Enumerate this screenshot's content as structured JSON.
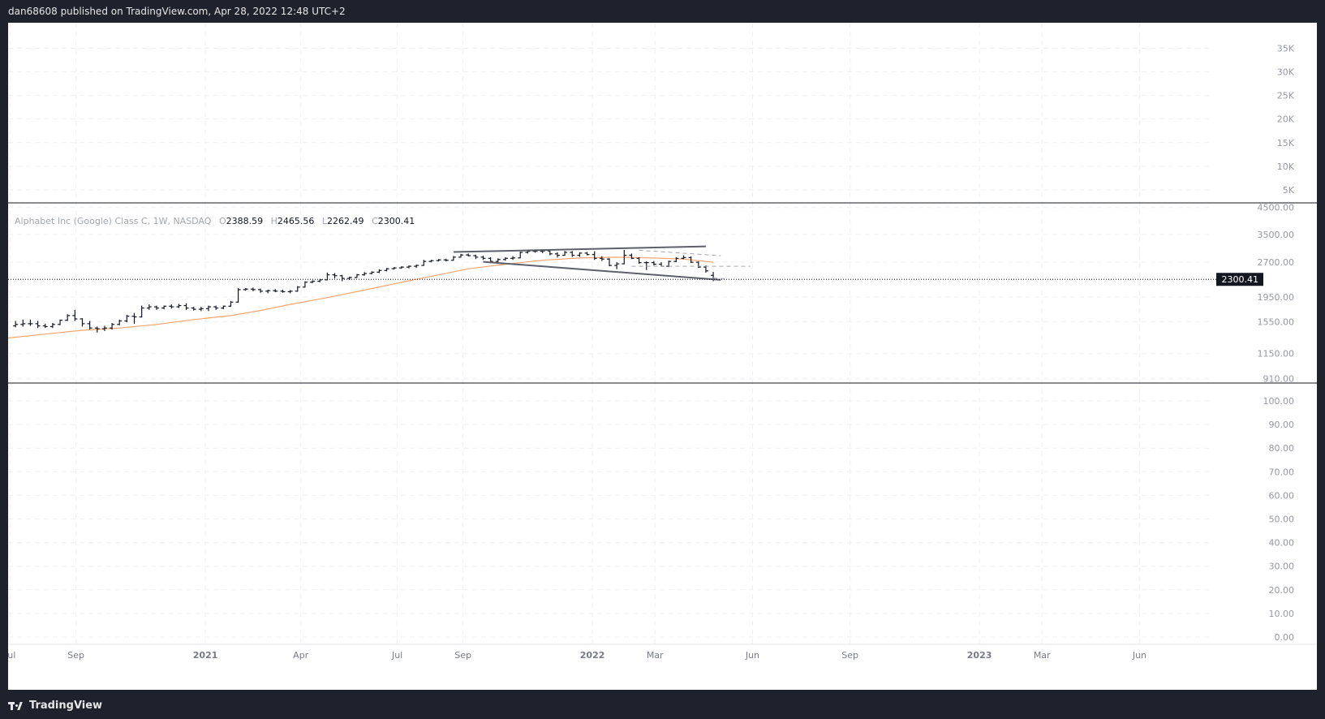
{
  "header": {
    "published": "dan68608 published on TradingView.com, Apr 28, 2022 12:48 UTC+2"
  },
  "footer": {
    "brand": "TradingView"
  },
  "legend": {
    "symbol": "Alphabet Inc (Google) Class C, 1W, NASDAQ",
    "o_label": "O",
    "o": "2388.59",
    "h_label": "H",
    "h": "2465.56",
    "l_label": "L",
    "l": "2262.49",
    "c_label": "C",
    "c": "2300.41"
  },
  "colors": {
    "background": "#ffffff",
    "bar": "#131722",
    "ma": "#f7a46f",
    "trendline": "#5d606b",
    "frame": "#1e222d",
    "price_label_bg": "#131722",
    "price_label_text": "#ffffff"
  },
  "chart_data": [
    {
      "type": "line",
      "pane": "top",
      "y_ticks": [
        "35K",
        "30K",
        "25K",
        "20K",
        "15K",
        "10K",
        "5K"
      ],
      "y_values": [
        35000,
        30000,
        25000,
        20000,
        15000,
        10000,
        5000
      ],
      "series": []
    },
    {
      "type": "ohlc",
      "pane": "main",
      "y_scale": "log",
      "ylim": [
        880,
        4700
      ],
      "y_ticks": [
        "4500.00",
        "3500.00",
        "2700.00",
        "1950.00",
        "1550.00",
        "1150.00",
        "910.00"
      ],
      "y_values": [
        4500,
        3500,
        2700,
        1950,
        1550,
        1150,
        910
      ],
      "last_price": 2300.41,
      "last_price_label": "2300.41",
      "x_ticks": [
        {
          "label": "Jul",
          "date": "2020-07-01",
          "bold": false
        },
        {
          "label": "Sep",
          "date": "2020-09-01",
          "bold": false
        },
        {
          "label": "2021",
          "date": "2021-01-01",
          "bold": true
        },
        {
          "label": "Apr",
          "date": "2021-04-01",
          "bold": false
        },
        {
          "label": "Jul",
          "date": "2021-07-01",
          "bold": false
        },
        {
          "label": "Sep",
          "date": "2021-09-01",
          "bold": false
        },
        {
          "label": "2022",
          "date": "2022-01-01",
          "bold": true
        },
        {
          "label": "Mar",
          "date": "2022-03-01",
          "bold": false
        },
        {
          "label": "Jun",
          "date": "2022-06-01",
          "bold": false
        },
        {
          "label": "Sep",
          "date": "2022-09-01",
          "bold": false
        },
        {
          "label": "2023",
          "date": "2023-01-01",
          "bold": true
        },
        {
          "label": "Mar",
          "date": "2023-03-01",
          "bold": false
        },
        {
          "label": "Jun",
          "date": "2023-06-01",
          "bold": false
        }
      ],
      "x_start": "2020-06-29",
      "x_end": "2023-08-07",
      "bars": [
        {
          "d": "2020-07-06",
          "o": 1490,
          "h": 1560,
          "l": 1470,
          "c": 1510
        },
        {
          "d": "2020-07-13",
          "o": 1510,
          "h": 1580,
          "l": 1480,
          "c": 1520
        },
        {
          "d": "2020-07-20",
          "o": 1520,
          "h": 1580,
          "l": 1490,
          "c": 1520
        },
        {
          "d": "2020-07-27",
          "o": 1520,
          "h": 1560,
          "l": 1460,
          "c": 1490
        },
        {
          "d": "2020-08-03",
          "o": 1490,
          "h": 1520,
          "l": 1460,
          "c": 1480
        },
        {
          "d": "2020-08-10",
          "o": 1480,
          "h": 1530,
          "l": 1460,
          "c": 1510
        },
        {
          "d": "2020-08-17",
          "o": 1510,
          "h": 1580,
          "l": 1500,
          "c": 1570
        },
        {
          "d": "2020-08-24",
          "o": 1570,
          "h": 1660,
          "l": 1560,
          "c": 1640
        },
        {
          "d": "2020-08-31",
          "o": 1640,
          "h": 1730,
          "l": 1560,
          "c": 1590
        },
        {
          "d": "2020-09-07",
          "o": 1590,
          "h": 1600,
          "l": 1480,
          "c": 1520
        },
        {
          "d": "2020-09-14",
          "o": 1520,
          "h": 1560,
          "l": 1440,
          "c": 1460
        },
        {
          "d": "2020-09-21",
          "o": 1460,
          "h": 1480,
          "l": 1400,
          "c": 1450
        },
        {
          "d": "2020-09-28",
          "o": 1450,
          "h": 1490,
          "l": 1420,
          "c": 1460
        },
        {
          "d": "2020-10-05",
          "o": 1460,
          "h": 1530,
          "l": 1440,
          "c": 1510
        },
        {
          "d": "2020-10-12",
          "o": 1510,
          "h": 1580,
          "l": 1500,
          "c": 1560
        },
        {
          "d": "2020-10-19",
          "o": 1560,
          "h": 1650,
          "l": 1540,
          "c": 1630
        },
        {
          "d": "2020-10-26",
          "o": 1630,
          "h": 1680,
          "l": 1520,
          "c": 1620
        },
        {
          "d": "2020-11-02",
          "o": 1620,
          "h": 1800,
          "l": 1610,
          "c": 1760
        },
        {
          "d": "2020-11-09",
          "o": 1760,
          "h": 1820,
          "l": 1730,
          "c": 1780
        },
        {
          "d": "2020-11-16",
          "o": 1780,
          "h": 1800,
          "l": 1730,
          "c": 1760
        },
        {
          "d": "2020-11-23",
          "o": 1760,
          "h": 1800,
          "l": 1740,
          "c": 1790
        },
        {
          "d": "2020-11-30",
          "o": 1790,
          "h": 1820,
          "l": 1750,
          "c": 1780
        },
        {
          "d": "2020-12-07",
          "o": 1780,
          "h": 1830,
          "l": 1760,
          "c": 1800
        },
        {
          "d": "2020-12-14",
          "o": 1800,
          "h": 1840,
          "l": 1730,
          "c": 1760
        },
        {
          "d": "2020-12-21",
          "o": 1760,
          "h": 1780,
          "l": 1720,
          "c": 1740
        },
        {
          "d": "2020-12-28",
          "o": 1740,
          "h": 1780,
          "l": 1710,
          "c": 1750
        },
        {
          "d": "2021-01-04",
          "o": 1750,
          "h": 1800,
          "l": 1710,
          "c": 1780
        },
        {
          "d": "2021-01-11",
          "o": 1780,
          "h": 1800,
          "l": 1730,
          "c": 1760
        },
        {
          "d": "2021-01-18",
          "o": 1760,
          "h": 1800,
          "l": 1740,
          "c": 1790
        },
        {
          "d": "2021-01-25",
          "o": 1790,
          "h": 1880,
          "l": 1780,
          "c": 1860
        },
        {
          "d": "2021-02-01",
          "o": 1860,
          "h": 2120,
          "l": 1850,
          "c": 2090
        },
        {
          "d": "2021-02-08",
          "o": 2090,
          "h": 2120,
          "l": 2070,
          "c": 2100
        },
        {
          "d": "2021-02-15",
          "o": 2100,
          "h": 2130,
          "l": 2060,
          "c": 2090
        },
        {
          "d": "2021-02-22",
          "o": 2090,
          "h": 2110,
          "l": 2030,
          "c": 2060
        },
        {
          "d": "2021-03-01",
          "o": 2060,
          "h": 2090,
          "l": 2020,
          "c": 2070
        },
        {
          "d": "2021-03-08",
          "o": 2070,
          "h": 2100,
          "l": 2040,
          "c": 2060
        },
        {
          "d": "2021-03-15",
          "o": 2060,
          "h": 2090,
          "l": 2030,
          "c": 2050
        },
        {
          "d": "2021-03-22",
          "o": 2050,
          "h": 2080,
          "l": 2020,
          "c": 2060
        },
        {
          "d": "2021-03-29",
          "o": 2060,
          "h": 2160,
          "l": 2050,
          "c": 2140
        },
        {
          "d": "2021-04-05",
          "o": 2140,
          "h": 2260,
          "l": 2130,
          "c": 2240
        },
        {
          "d": "2021-04-12",
          "o": 2240,
          "h": 2280,
          "l": 2220,
          "c": 2260
        },
        {
          "d": "2021-04-19",
          "o": 2260,
          "h": 2310,
          "l": 2240,
          "c": 2290
        },
        {
          "d": "2021-04-26",
          "o": 2290,
          "h": 2450,
          "l": 2280,
          "c": 2400
        },
        {
          "d": "2021-05-03",
          "o": 2400,
          "h": 2440,
          "l": 2320,
          "c": 2380
        },
        {
          "d": "2021-05-10",
          "o": 2380,
          "h": 2400,
          "l": 2260,
          "c": 2320
        },
        {
          "d": "2021-05-17",
          "o": 2320,
          "h": 2360,
          "l": 2290,
          "c": 2340
        },
        {
          "d": "2021-05-24",
          "o": 2340,
          "h": 2420,
          "l": 2330,
          "c": 2400
        },
        {
          "d": "2021-05-31",
          "o": 2400,
          "h": 2460,
          "l": 2380,
          "c": 2430
        },
        {
          "d": "2021-06-07",
          "o": 2430,
          "h": 2480,
          "l": 2410,
          "c": 2460
        },
        {
          "d": "2021-06-14",
          "o": 2460,
          "h": 2530,
          "l": 2440,
          "c": 2500
        },
        {
          "d": "2021-06-21",
          "o": 2500,
          "h": 2560,
          "l": 2480,
          "c": 2540
        },
        {
          "d": "2021-06-28",
          "o": 2540,
          "h": 2580,
          "l": 2520,
          "c": 2560
        },
        {
          "d": "2021-07-05",
          "o": 2560,
          "h": 2600,
          "l": 2540,
          "c": 2580
        },
        {
          "d": "2021-07-12",
          "o": 2580,
          "h": 2620,
          "l": 2550,
          "c": 2600
        },
        {
          "d": "2021-07-19",
          "o": 2600,
          "h": 2640,
          "l": 2560,
          "c": 2620
        },
        {
          "d": "2021-07-26",
          "o": 2620,
          "h": 2760,
          "l": 2610,
          "c": 2720
        },
        {
          "d": "2021-08-02",
          "o": 2720,
          "h": 2760,
          "l": 2700,
          "c": 2740
        },
        {
          "d": "2021-08-09",
          "o": 2740,
          "h": 2780,
          "l": 2720,
          "c": 2760
        },
        {
          "d": "2021-08-16",
          "o": 2760,
          "h": 2790,
          "l": 2720,
          "c": 2750
        },
        {
          "d": "2021-08-23",
          "o": 2750,
          "h": 2860,
          "l": 2740,
          "c": 2830
        },
        {
          "d": "2021-08-30",
          "o": 2830,
          "h": 2920,
          "l": 2820,
          "c": 2890
        },
        {
          "d": "2021-09-06",
          "o": 2890,
          "h": 2930,
          "l": 2850,
          "c": 2870
        },
        {
          "d": "2021-09-13",
          "o": 2870,
          "h": 2900,
          "l": 2780,
          "c": 2830
        },
        {
          "d": "2021-09-20",
          "o": 2830,
          "h": 2870,
          "l": 2760,
          "c": 2800
        },
        {
          "d": "2021-09-27",
          "o": 2800,
          "h": 2830,
          "l": 2680,
          "c": 2720
        },
        {
          "d": "2021-10-04",
          "o": 2720,
          "h": 2800,
          "l": 2700,
          "c": 2770
        },
        {
          "d": "2021-10-11",
          "o": 2770,
          "h": 2830,
          "l": 2740,
          "c": 2800
        },
        {
          "d": "2021-10-18",
          "o": 2800,
          "h": 2860,
          "l": 2760,
          "c": 2810
        },
        {
          "d": "2021-10-25",
          "o": 2810,
          "h": 2980,
          "l": 2800,
          "c": 2960
        },
        {
          "d": "2021-11-01",
          "o": 2960,
          "h": 3030,
          "l": 2930,
          "c": 2990
        },
        {
          "d": "2021-11-08",
          "o": 2990,
          "h": 3040,
          "l": 2950,
          "c": 2990
        },
        {
          "d": "2021-11-15",
          "o": 2990,
          "h": 3040,
          "l": 2940,
          "c": 3000
        },
        {
          "d": "2021-11-22",
          "o": 3000,
          "h": 3020,
          "l": 2880,
          "c": 2920
        },
        {
          "d": "2021-11-29",
          "o": 2920,
          "h": 2960,
          "l": 2820,
          "c": 2880
        },
        {
          "d": "2021-12-06",
          "o": 2880,
          "h": 3000,
          "l": 2870,
          "c": 2960
        },
        {
          "d": "2021-12-13",
          "o": 2960,
          "h": 3000,
          "l": 2840,
          "c": 2880
        },
        {
          "d": "2021-12-20",
          "o": 2880,
          "h": 2960,
          "l": 2840,
          "c": 2940
        },
        {
          "d": "2021-12-27",
          "o": 2940,
          "h": 2970,
          "l": 2880,
          "c": 2900
        },
        {
          "d": "2022-01-03",
          "o": 2900,
          "h": 2990,
          "l": 2760,
          "c": 2800
        },
        {
          "d": "2022-01-10",
          "o": 2800,
          "h": 2860,
          "l": 2730,
          "c": 2780
        },
        {
          "d": "2022-01-17",
          "o": 2780,
          "h": 2800,
          "l": 2600,
          "c": 2620
        },
        {
          "d": "2022-01-24",
          "o": 2620,
          "h": 2700,
          "l": 2530,
          "c": 2660
        },
        {
          "d": "2022-01-31",
          "o": 2660,
          "h": 3030,
          "l": 2650,
          "c": 2880
        },
        {
          "d": "2022-02-07",
          "o": 2880,
          "h": 2930,
          "l": 2780,
          "c": 2800
        },
        {
          "d": "2022-02-14",
          "o": 2800,
          "h": 2830,
          "l": 2660,
          "c": 2690
        },
        {
          "d": "2022-02-21",
          "o": 2690,
          "h": 2720,
          "l": 2510,
          "c": 2690
        },
        {
          "d": "2022-02-28",
          "o": 2690,
          "h": 2730,
          "l": 2620,
          "c": 2650
        },
        {
          "d": "2022-03-07",
          "o": 2650,
          "h": 2700,
          "l": 2590,
          "c": 2600
        },
        {
          "d": "2022-03-14",
          "o": 2600,
          "h": 2740,
          "l": 2580,
          "c": 2720
        },
        {
          "d": "2022-03-21",
          "o": 2720,
          "h": 2830,
          "l": 2700,
          "c": 2800
        },
        {
          "d": "2022-03-28",
          "o": 2800,
          "h": 2880,
          "l": 2780,
          "c": 2820
        },
        {
          "d": "2022-04-04",
          "o": 2820,
          "h": 2850,
          "l": 2680,
          "c": 2700
        },
        {
          "d": "2022-04-11",
          "o": 2700,
          "h": 2720,
          "l": 2560,
          "c": 2580
        },
        {
          "d": "2022-04-18",
          "o": 2580,
          "h": 2620,
          "l": 2450,
          "c": 2490
        },
        {
          "d": "2022-04-25",
          "o": 2388.59,
          "h": 2465.56,
          "l": 2262.49,
          "c": 2300.41
        }
      ],
      "moving_average": [
        {
          "d": "2020-06-29",
          "v": 1330
        },
        {
          "d": "2020-08-03",
          "v": 1380
        },
        {
          "d": "2020-09-07",
          "v": 1430
        },
        {
          "d": "2020-10-12",
          "v": 1460
        },
        {
          "d": "2020-11-16",
          "v": 1510
        },
        {
          "d": "2020-12-21",
          "v": 1580
        },
        {
          "d": "2021-01-25",
          "v": 1640
        },
        {
          "d": "2021-02-22",
          "v": 1720
        },
        {
          "d": "2021-03-22",
          "v": 1820
        },
        {
          "d": "2021-04-26",
          "v": 1940
        },
        {
          "d": "2021-05-31",
          "v": 2080
        },
        {
          "d": "2021-07-05",
          "v": 2240
        },
        {
          "d": "2021-08-09",
          "v": 2400
        },
        {
          "d": "2021-09-06",
          "v": 2540
        },
        {
          "d": "2021-10-11",
          "v": 2650
        },
        {
          "d": "2021-11-15",
          "v": 2750
        },
        {
          "d": "2021-12-20",
          "v": 2810
        },
        {
          "d": "2022-01-24",
          "v": 2830
        },
        {
          "d": "2022-02-28",
          "v": 2810
        },
        {
          "d": "2022-03-28",
          "v": 2780
        },
        {
          "d": "2022-04-25",
          "v": 2700
        }
      ],
      "trendlines": [
        {
          "style": "solid",
          "points": [
            {
              "d": "2021-08-23",
              "v": 2970
            },
            {
              "d": "2022-04-18",
              "v": 3130
            }
          ]
        },
        {
          "style": "solid",
          "points": [
            {
              "d": "2021-09-20",
              "v": 2710
            },
            {
              "d": "2022-05-02",
              "v": 2290
            }
          ]
        },
        {
          "style": "dashed",
          "points": [
            {
              "d": "2022-02-07",
              "v": 2600
            },
            {
              "d": "2022-05-30",
              "v": 2600
            }
          ]
        },
        {
          "style": "dashed",
          "points": [
            {
              "d": "2022-02-14",
              "v": 3020
            },
            {
              "d": "2022-05-02",
              "v": 2870
            }
          ]
        },
        {
          "style": "dashed",
          "points": [
            {
              "d": "2022-04-25",
              "v": 2330
            },
            {
              "d": "2022-05-09",
              "v": 2310
            }
          ]
        }
      ]
    },
    {
      "type": "line",
      "pane": "bottom",
      "ylim": [
        0,
        100
      ],
      "y_ticks": [
        "100.00",
        "90.00",
        "80.00",
        "70.00",
        "60.00",
        "50.00",
        "40.00",
        "30.00",
        "20.00",
        "10.00",
        "0.00"
      ],
      "y_values": [
        100,
        90,
        80,
        70,
        60,
        50,
        40,
        30,
        20,
        10,
        0
      ],
      "series": []
    }
  ]
}
